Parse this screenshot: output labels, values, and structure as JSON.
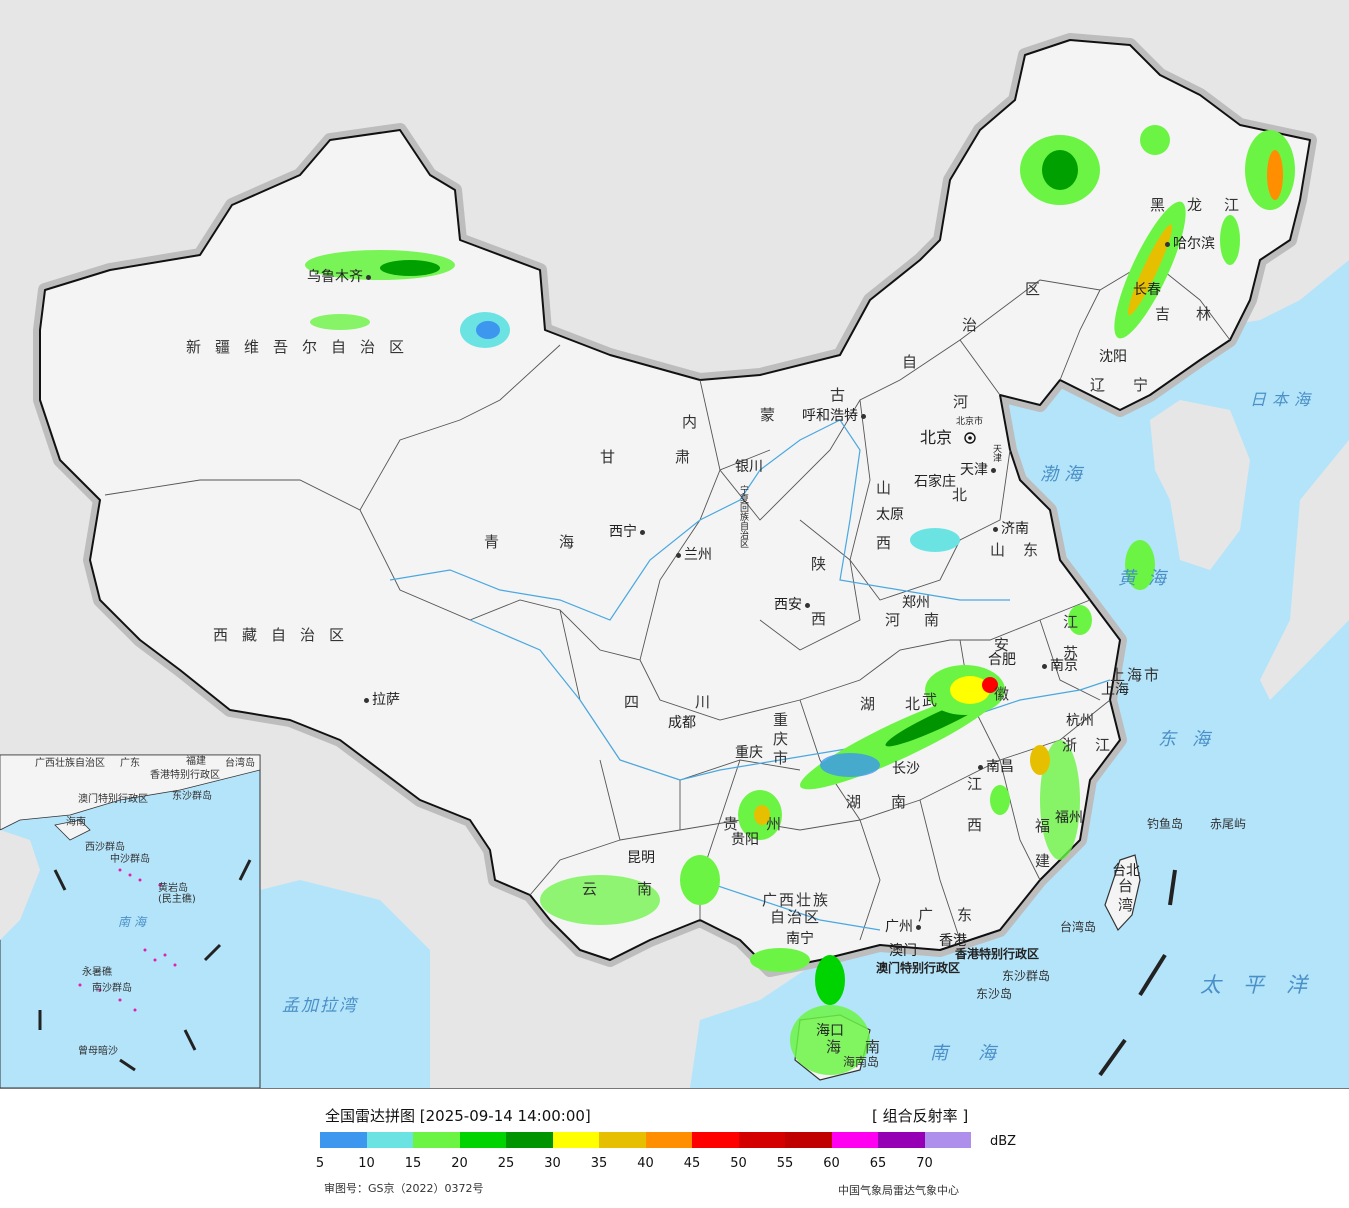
{
  "map": {
    "provinces": {
      "xinjiang": "新疆维吾尔自治区",
      "tibet": "西藏自治区",
      "qinghai": "青海",
      "gansu": "甘肃",
      "neimenggu_1": "内",
      "neimenggu_2": "蒙",
      "neimenggu_3": "古",
      "neimenggu_4": "自",
      "neimenggu_5": "治",
      "neimenggu_6": "区",
      "heilongjiang": "黑龙江",
      "jilin": "吉林",
      "liaoning": "辽宁",
      "hebei_1": "河",
      "hebei_2": "北",
      "shanxi": "山西",
      "shandong": "山东",
      "henan": "河南",
      "shaanxi": "陕西",
      "ningxia": "宁夏回族自治区",
      "sichuan": "四川",
      "chongqing": "重庆市",
      "hubei": "湖北",
      "anhui": "安徽",
      "jiangsu": "江苏",
      "shanghai": "上海市",
      "zhejiang": "浙江",
      "jiangxi": "江西",
      "hunan": "湖南",
      "fujian": "福建",
      "guizhou": "贵州",
      "yunnan": "云南",
      "guangxi_1": "广西壮族",
      "guangxi_2": "自治区",
      "guangdong": "广东",
      "hainan": "海南",
      "taiwan": "台湾",
      "hongkong": "香港特别行政区",
      "macau": "澳门特别行政区"
    },
    "cities": {
      "urumqi": "乌鲁木齐",
      "lhasa": "拉萨",
      "xining": "西宁",
      "lanzhou": "兰州",
      "yinchuan": "银川",
      "hohhot": "呼和浩特",
      "beijing": "北京",
      "beijing_small": "北京市",
      "tianjin": "天津",
      "tianjin_small": "天津",
      "shijiazhuang": "石家庄",
      "taiyuan": "太原",
      "jinan": "济南",
      "zhengzhou": "郑州",
      "xian": "西安",
      "chengdu": "成都",
      "chongqing": "重庆",
      "wuhan": "武",
      "hefei": "合肥",
      "nanjing": "南京",
      "shanghai": "上海",
      "hangzhou": "杭州",
      "nanchang": "南昌",
      "changsha": "长沙",
      "fuzhou": "福州",
      "guiyang": "贵阳",
      "kunming": "昆明",
      "nanning": "南宁",
      "guangzhou": "广州",
      "hongkong": "香港",
      "macau": "澳门",
      "haikou": "海口",
      "taipei": "台北",
      "harbin": "哈尔滨",
      "changchun": "长春",
      "shenyang": "沈阳"
    },
    "seas": {
      "japan_sea": "日本海",
      "bohai": "渤海",
      "yellow_sea": "黄海",
      "east_sea": "东海",
      "south_sea": "南海",
      "pacific": "太平洋",
      "bengal": "孟加拉湾"
    },
    "islands": {
      "diaoyu": "钓鱼岛",
      "chiwei": "赤尾屿",
      "taiwan_island": "台湾岛",
      "dongsha_qundao": "东沙群岛",
      "dongsha_dao": "东沙岛",
      "hainan_island": "海南岛"
    },
    "inset": {
      "guangxi": "广西壮族自治区",
      "guangdong": "广东",
      "fujian": "福建",
      "taiwan": "台湾岛",
      "hongkong": "香港特别行政区",
      "macau": "澳门特别行政区",
      "dongsha": "东沙群岛",
      "hainan": "海南",
      "xisha": "西沙群岛",
      "zhongsha": "中沙群岛",
      "huangyan": "黄岩岛",
      "huangyan_sub": "(民主礁)",
      "south_sea": "南海",
      "yongshu": "永暑礁",
      "nansha": "南沙群岛",
      "zengmu": "曾母暗沙"
    }
  },
  "legend": {
    "title": "全国雷达拼图 [2025-09-14 14:00:00]",
    "product": "[ 组合反射率 ]",
    "unit": "dBZ",
    "colors": [
      "#3d97ef",
      "#6be3e3",
      "#6cf445",
      "#00d400",
      "#009400",
      "#ffff00",
      "#e6c000",
      "#ff8f00",
      "#ff0000",
      "#d40000",
      "#c00000",
      "#ff00f0",
      "#9600b4",
      "#ae90ec"
    ],
    "ticks": [
      "5",
      "10",
      "15",
      "20",
      "25",
      "30",
      "35",
      "40",
      "45",
      "50",
      "55",
      "60",
      "65",
      "70"
    ],
    "approval": "审图号：GS京（2022）0372号",
    "source": "中国气象局雷达气象中心"
  }
}
